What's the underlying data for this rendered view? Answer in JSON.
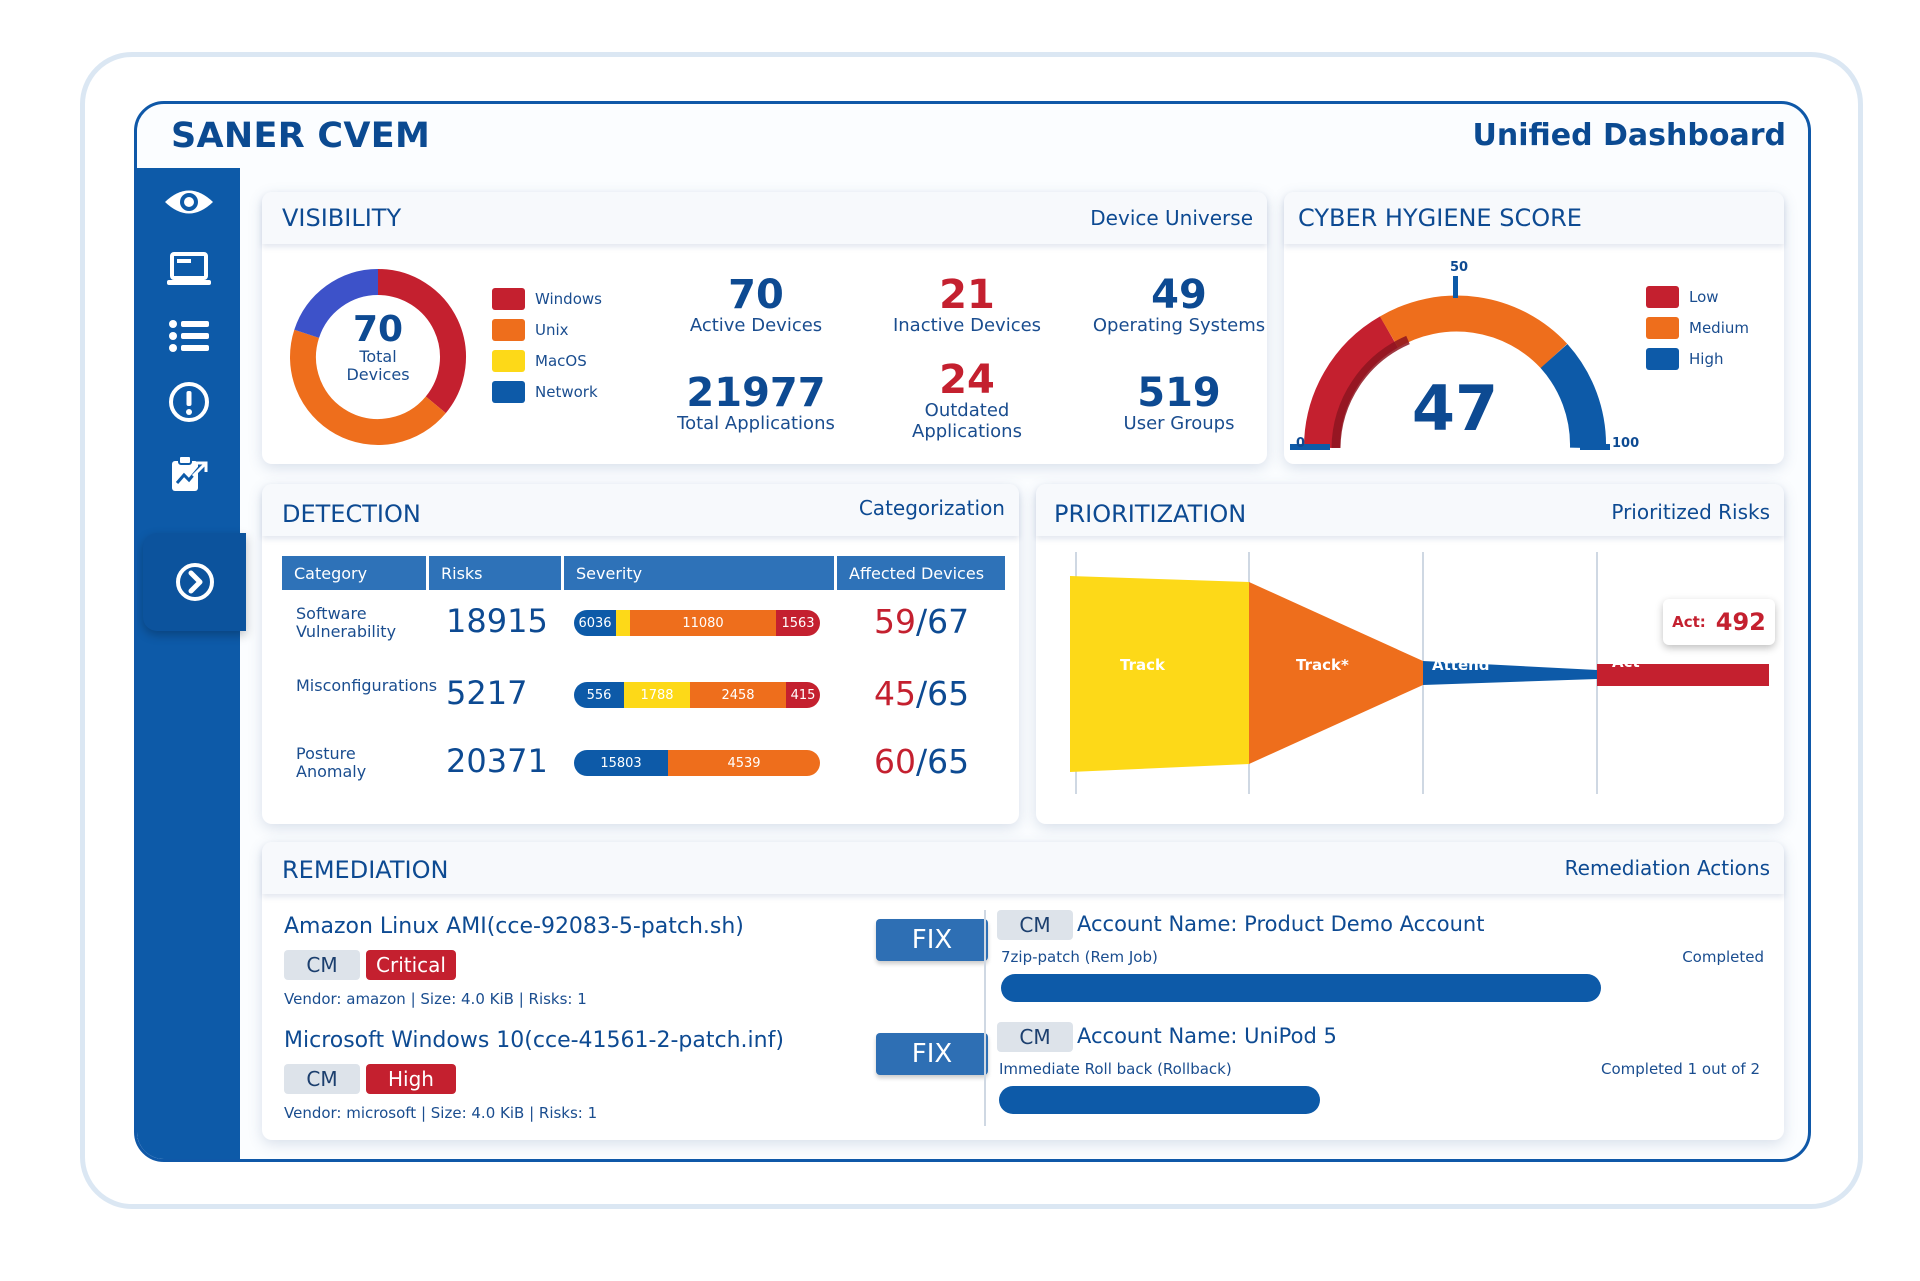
{
  "app": {
    "title": "SANER CVEM",
    "subtitle": "Unified Dashboard"
  },
  "sidebar": {
    "items": [
      {
        "icon": "eye-icon"
      },
      {
        "icon": "laptop-icon"
      },
      {
        "icon": "list-icon"
      },
      {
        "icon": "alert-icon"
      },
      {
        "icon": "report-icon"
      },
      {
        "icon": "arrow-circle-icon"
      }
    ]
  },
  "visibility": {
    "title": "VISIBILITY",
    "subtitle": "Device Universe",
    "donut": {
      "total": "70",
      "label_line1": "Total",
      "label_line2": "Devices",
      "segments": [
        {
          "name": "Windows",
          "color": "#c4202f",
          "value": 36
        },
        {
          "name": "Unix",
          "color": "#ee6e1c",
          "value": 44
        },
        {
          "name": "MacOS",
          "color": "#fdd918",
          "value": 0
        },
        {
          "name": "Network",
          "color": "#3d52c9",
          "value": 20
        }
      ]
    },
    "legend": [
      "Windows",
      "Unix",
      "MacOS",
      "Network"
    ],
    "stats": [
      {
        "value": "70",
        "label": "Active Devices",
        "color": "blue"
      },
      {
        "value": "21",
        "label": "Inactive Devices",
        "color": "red"
      },
      {
        "value": "49",
        "label": "Operating Systems",
        "color": "blue"
      },
      {
        "value": "21977",
        "label": "Total Applications",
        "color": "blue"
      },
      {
        "value": "24",
        "label": "Outdated Applications",
        "color": "red"
      },
      {
        "value": "519",
        "label": "User Groups",
        "color": "blue"
      }
    ]
  },
  "hygiene": {
    "title": "CYBER HYGIENE SCORE",
    "score": "47",
    "min": "0",
    "mid": "50",
    "max": "100",
    "legend": [
      {
        "name": "Low",
        "color": "#c4202f"
      },
      {
        "name": "Medium",
        "color": "#ee6e1c"
      },
      {
        "name": "High",
        "color": "#0d5aa8"
      }
    ]
  },
  "detection": {
    "title": "DETECTION",
    "subtitle": "Categorization",
    "headers": [
      "Category",
      "Risks",
      "Severity",
      "Affected Devices"
    ],
    "rows": [
      {
        "category": "Software Vulnerability",
        "risks": "18915",
        "severity": [
          {
            "v": "6036",
            "c": "#0d5aa8",
            "w": 42
          },
          {
            "v": "",
            "c": "#fdd918",
            "w": 14
          },
          {
            "v": "11080",
            "c": "#ee6e1c",
            "w": 146
          },
          {
            "v": "1563",
            "c": "#c4202f",
            "w": 44
          }
        ],
        "affected": "59",
        "total": "67"
      },
      {
        "category": "Misconfigurations",
        "risks": "5217",
        "severity": [
          {
            "v": "556",
            "c": "#0d5aa8",
            "w": 50
          },
          {
            "v": "1788",
            "c": "#fdd918",
            "w": 66
          },
          {
            "v": "2458",
            "c": "#ee6e1c",
            "w": 96
          },
          {
            "v": "415",
            "c": "#c4202f",
            "w": 34
          }
        ],
        "affected": "45",
        "total": "65"
      },
      {
        "category": "Posture Anomaly",
        "risks": "20371",
        "severity": [
          {
            "v": "15803",
            "c": "#0d5aa8",
            "w": 94
          },
          {
            "v": "4539",
            "c": "#ee6e1c",
            "w": 152
          }
        ],
        "affected": "60",
        "total": "65"
      }
    ]
  },
  "prioritization": {
    "title": "PRIORITIZATION",
    "subtitle": "Prioritized Risks",
    "stages": [
      "Track",
      "Track*",
      "Attend",
      "Act"
    ],
    "callout_label": "Act:",
    "callout_value": "492"
  },
  "remediation": {
    "title": "REMEDIATION",
    "subtitle": "Remediation Actions",
    "fix_label": "FIX",
    "items": [
      {
        "name": "Amazon Linux AMI(cce-92083-5-patch.sh)",
        "tag": "CM",
        "severity": "Critical",
        "meta": "Vendor: amazon | Size: 4.0 KiB | Risks: 1"
      },
      {
        "name": "Microsoft Windows 10(cce-41561-2-patch.inf)",
        "tag": "CM",
        "severity": "High",
        "meta": "Vendor: microsoft | Size: 4.0 KiB | Risks: 1"
      }
    ],
    "actions": [
      {
        "tag": "CM",
        "account": "Account Name: Product Demo Account",
        "job": "7zip-patch (Rem Job)",
        "status": "Completed",
        "progress": 1.0
      },
      {
        "tag": "CM",
        "account": "Account Name: UniPod 5",
        "job": "Immediate Roll back (Rollback)",
        "status": "Completed 1 out of 2",
        "progress": 0.5
      }
    ]
  }
}
